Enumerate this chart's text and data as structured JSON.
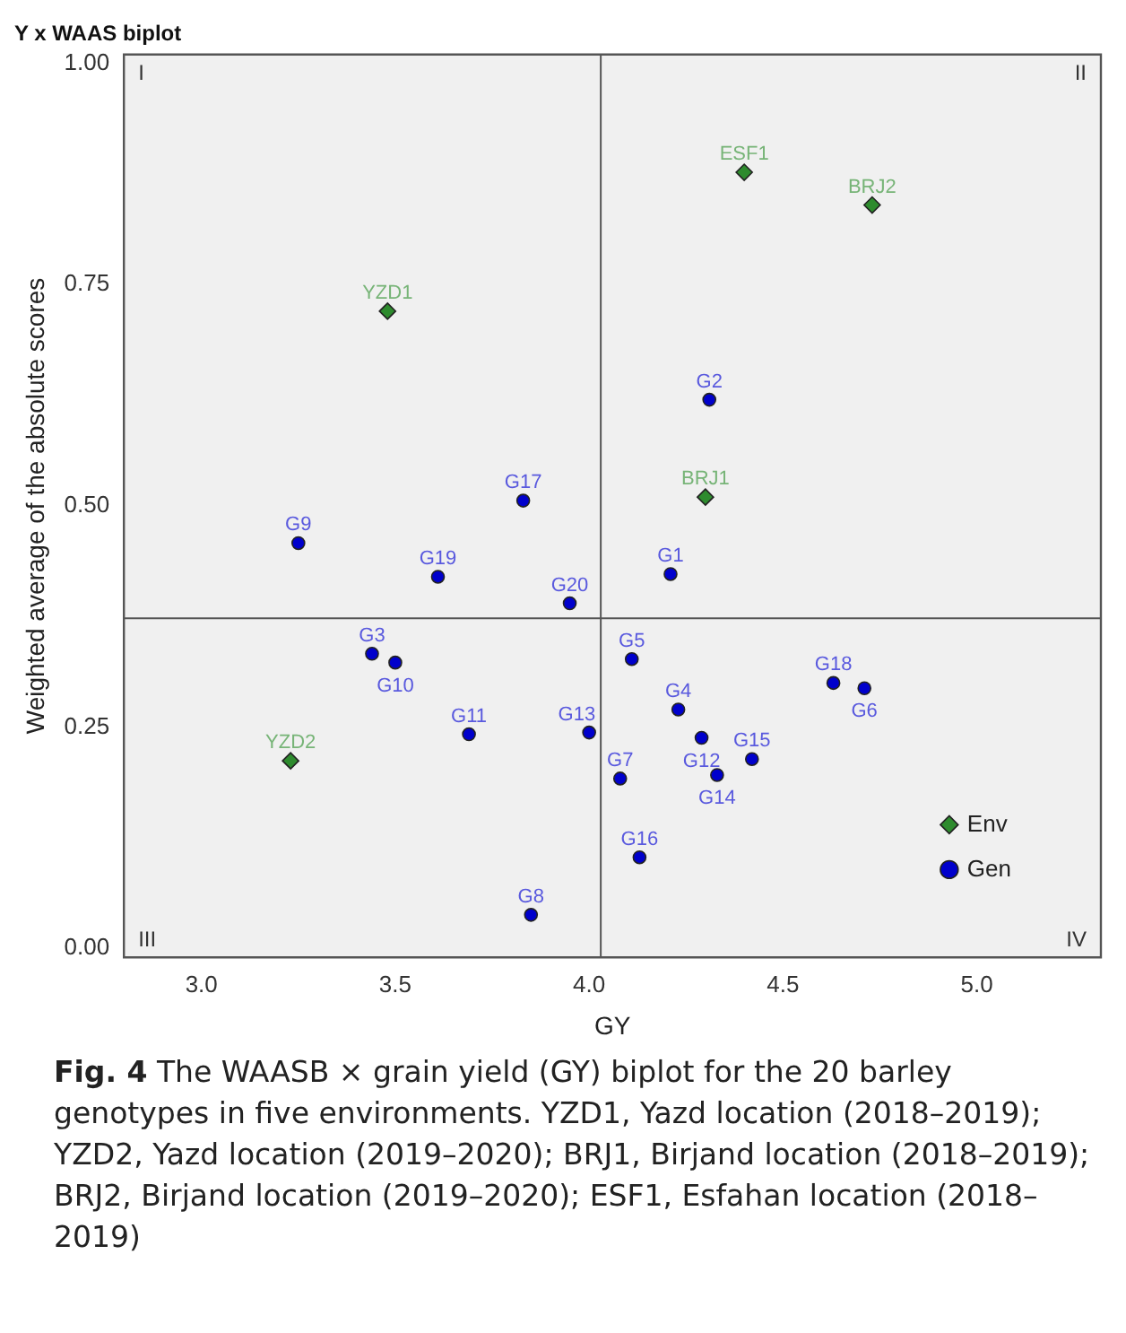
{
  "chart_data": {
    "type": "scatter",
    "title": "Y x WAAS biplot",
    "xlabel": "GY",
    "ylabel": "Weighted average of the absolute scores",
    "xlim": [
      2.8,
      5.32
    ],
    "ylim": [
      -0.01,
      1.01
    ],
    "xticks": [
      {
        "value": 3,
        "label": "3.0"
      },
      {
        "value": 3.5,
        "label": "3.5"
      },
      {
        "value": 4,
        "label": "4.0"
      },
      {
        "value": 4.5,
        "label": "4.5"
      },
      {
        "value": 5,
        "label": "5.0"
      }
    ],
    "yticks": [
      {
        "value": 0,
        "label": "0.00"
      },
      {
        "value": 0.25,
        "label": "0.25"
      },
      {
        "value": 0.5,
        "label": "0.50"
      },
      {
        "value": 0.75,
        "label": "0.75"
      },
      {
        "value": 1,
        "label": "1.00"
      }
    ],
    "grid": false,
    "legend": "bottom right",
    "series": [
      {
        "name": "Env",
        "color": "#2e8b2e",
        "marker": "diamond",
        "x": [
          3.48,
          3.23,
          4.3,
          4.73,
          4.4
        ],
        "values": [
          0.72,
          0.212,
          0.51,
          0.84,
          0.877
        ]
      },
      {
        "name": "Gen",
        "color": "#0000cc",
        "marker": "circle",
        "x": [
          4.21,
          4.31,
          3.44,
          4.23,
          4.11,
          4.71,
          4.08,
          3.85,
          3.25,
          3.5,
          3.69,
          4.29,
          4.0,
          4.33,
          4.42,
          4.13,
          3.83,
          4.63,
          3.61,
          3.95
        ],
        "values": [
          0.423,
          0.62,
          0.333,
          0.27,
          0.327,
          0.294,
          0.192,
          0.038,
          0.458,
          0.323,
          0.242,
          0.238,
          0.244,
          0.196,
          0.214,
          0.103,
          0.506,
          0.3,
          0.42,
          0.39
        ]
      }
    ],
    "ref_lines": [
      {
        "axis": "x",
        "value": 4.03,
        "color": "#555555"
      },
      {
        "axis": "y",
        "value": 0.373,
        "color": "#555555"
      }
    ],
    "annotations": [
      "I",
      "II",
      "III",
      "IV",
      {
        "text": "YZD1",
        "x": 3.48,
        "y": 0.72
      },
      {
        "text": "YZD2",
        "x": 3.23,
        "y": 0.212
      },
      {
        "text": "BRJ1",
        "x": 4.3,
        "y": 0.51
      },
      {
        "text": "BRJ2",
        "x": 4.73,
        "y": 0.84
      },
      {
        "text": "ESF1",
        "x": 4.4,
        "y": 0.877
      },
      {
        "text": "G1",
        "x": 4.21,
        "y": 0.423
      },
      {
        "text": "G2",
        "x": 4.31,
        "y": 0.62
      },
      {
        "text": "G3",
        "x": 3.44,
        "y": 0.333
      },
      {
        "text": "G4",
        "x": 4.23,
        "y": 0.27
      },
      {
        "text": "G5",
        "x": 4.11,
        "y": 0.327
      },
      {
        "text": "G6",
        "x": 4.71,
        "y": 0.294
      },
      {
        "text": "G7",
        "x": 4.08,
        "y": 0.192
      },
      {
        "text": "G8",
        "x": 3.85,
        "y": 0.038
      },
      {
        "text": "G9",
        "x": 3.25,
        "y": 0.458
      },
      {
        "text": "G10",
        "x": 3.5,
        "y": 0.323
      },
      {
        "text": "G11",
        "x": 3.69,
        "y": 0.242
      },
      {
        "text": "G12",
        "x": 4.29,
        "y": 0.238
      },
      {
        "text": "G13",
        "x": 4.0,
        "y": 0.244
      },
      {
        "text": "G14",
        "x": 4.33,
        "y": 0.196
      },
      {
        "text": "G15",
        "x": 4.42,
        "y": 0.214
      },
      {
        "text": "G16",
        "x": 4.13,
        "y": 0.103
      },
      {
        "text": "G17",
        "x": 3.83,
        "y": 0.506
      },
      {
        "text": "G18",
        "x": 4.63,
        "y": 0.3
      },
      {
        "text": "G19",
        "x": 3.61,
        "y": 0.42
      },
      {
        "text": "G20",
        "x": 3.95,
        "y": 0.39
      },
      "Fig. 4  The WAASB × grain yield (GY) biplot for the 20 barley genotypes in five environments. YZD1, Yazd location (2018–2019); YZD2, Yazd location (2019–2020); BRJ1, Birjand location (2018–2019); BRJ2, Birjand location (2019–2020); ESF1, Esfahan location (2018–2019)"
    ]
  }
}
